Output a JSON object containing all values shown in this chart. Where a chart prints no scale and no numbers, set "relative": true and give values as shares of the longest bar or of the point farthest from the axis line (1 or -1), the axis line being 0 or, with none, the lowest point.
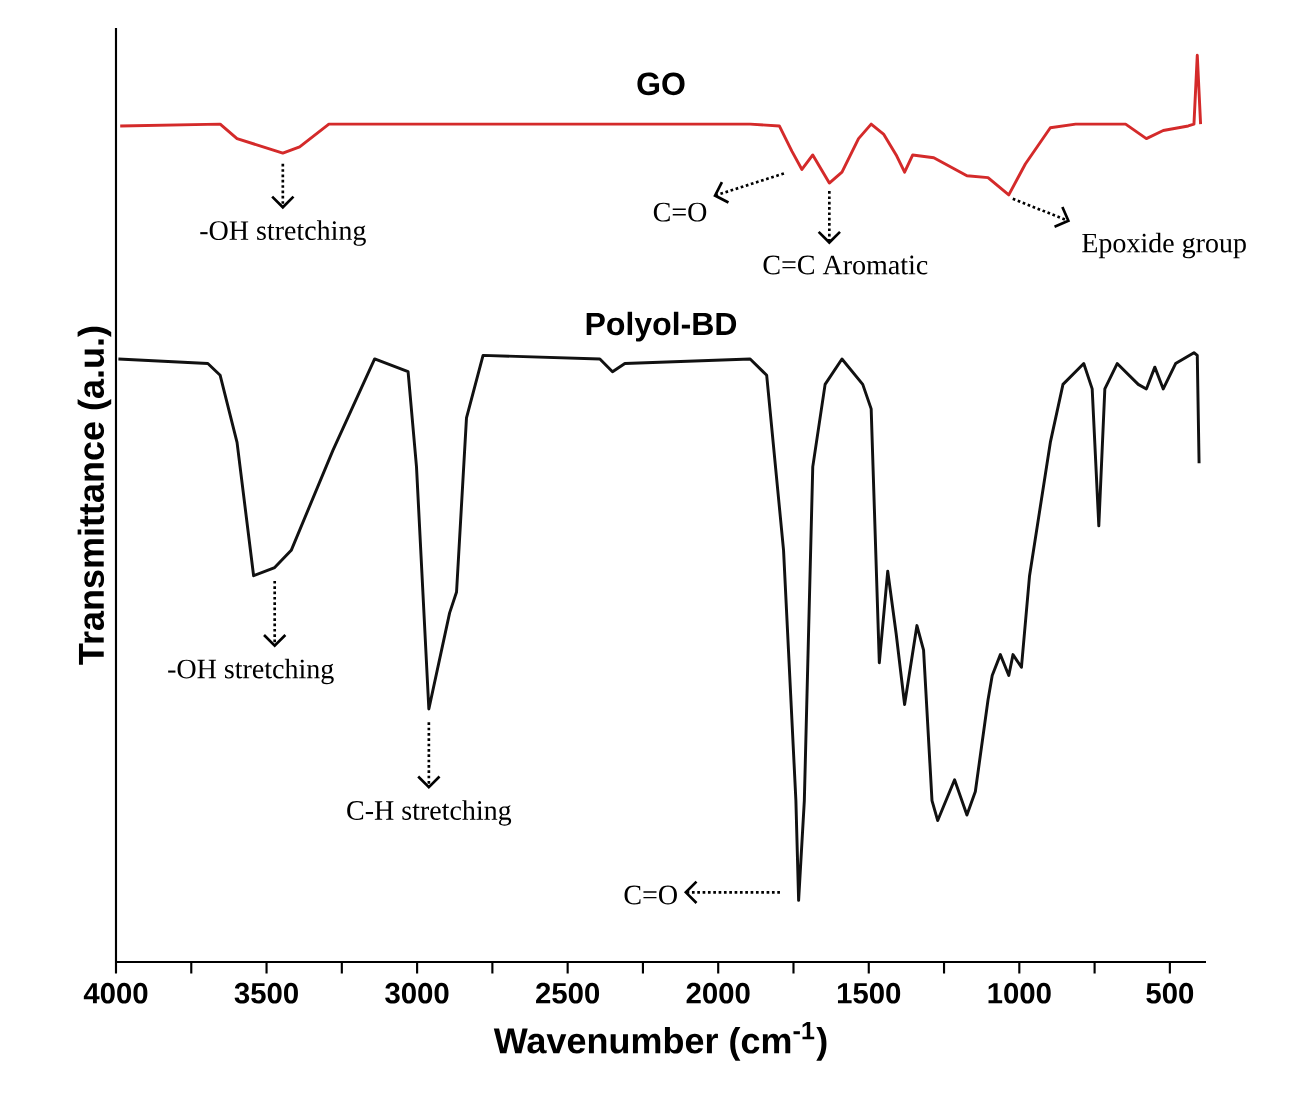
{
  "chart_data": {
    "type": "line",
    "xlabel": "Wavenumber (cm$^{-1}$)",
    "ylabel": "Transmittance (a.u.)",
    "relative": true,
    "xlim": [
      4000,
      380
    ],
    "xticks": [
      4000,
      {
        "value": 3750,
        "label": null
      },
      3500,
      {
        "value": 3250,
        "label": null
      },
      3000,
      {
        "value": 2750,
        "label": null
      },
      2500,
      {
        "value": 2250,
        "label": null
      },
      2000,
      {
        "value": 1750,
        "label": null
      },
      1500,
      {
        "value": 1250,
        "label": null
      },
      1000,
      {
        "value": 750,
        "label": null
      },
      500
    ],
    "series": [
      {
        "name": "GO",
        "color": "#d42a2a",
        "x": [
          3986,
          3654,
          3598,
          3446,
          3390,
          3293,
          1894,
          1797,
          1755,
          1722,
          1686,
          1631,
          1589,
          1534,
          1492,
          1451,
          1409,
          1381,
          1354,
          1284,
          1174,
          1104,
          1035,
          980,
          897,
          813,
          647,
          578,
          522,
          439,
          420,
          409,
          398
        ],
        "values": [
          0.922,
          0.924,
          0.908,
          0.892,
          0.899,
          0.924,
          0.924,
          0.922,
          0.894,
          0.874,
          0.89,
          0.859,
          0.871,
          0.908,
          0.924,
          0.913,
          0.89,
          0.871,
          0.89,
          0.887,
          0.867,
          0.865,
          0.846,
          0.88,
          0.92,
          0.924,
          0.924,
          0.908,
          0.917,
          0.922,
          0.924,
          1.0,
          0.924
        ]
      },
      {
        "name": "Polyol-BD",
        "color": "#111111",
        "x": [
          3992,
          3695,
          3654,
          3598,
          3543,
          3473,
          3418,
          3280,
          3141,
          3030,
          3002,
          2961,
          2892,
          2869,
          2836,
          2781,
          2393,
          2351,
          2310,
          1894,
          1839,
          1783,
          1742,
          1733,
          1714,
          1686,
          1645,
          1589,
          1520,
          1492,
          1465,
          1437,
          1409,
          1381,
          1340,
          1318,
          1290,
          1271,
          1215,
          1174,
          1146,
          1104,
          1090,
          1063,
          1035,
          1021,
          993,
          966,
          897,
          855,
          786,
          758,
          736,
          716,
          675,
          605,
          578,
          550,
          522,
          481,
          420,
          409,
          403
        ],
        "values": [
          0.665,
          0.66,
          0.647,
          0.573,
          0.426,
          0.435,
          0.454,
          0.564,
          0.665,
          0.651,
          0.546,
          0.279,
          0.385,
          0.408,
          0.6,
          0.669,
          0.665,
          0.651,
          0.66,
          0.665,
          0.647,
          0.454,
          0.178,
          0.068,
          0.178,
          0.546,
          0.637,
          0.665,
          0.637,
          0.61,
          0.33,
          0.431,
          0.362,
          0.284,
          0.371,
          0.344,
          0.178,
          0.156,
          0.201,
          0.162,
          0.188,
          0.289,
          0.316,
          0.339,
          0.316,
          0.339,
          0.325,
          0.426,
          0.573,
          0.637,
          0.66,
          0.632,
          0.481,
          0.632,
          0.66,
          0.637,
          0.632,
          0.656,
          0.632,
          0.66,
          0.672,
          0.669,
          0.55
        ]
      }
    ],
    "annotations": [
      {
        "text": "-OH stretching",
        "x": 3446,
        "y": 0.892
      },
      {
        "text": "C=O",
        "x": 1742,
        "y": 0.874
      },
      {
        "text": "C=C Aromatic",
        "x": 1631,
        "y": 0.859
      },
      {
        "text": "Epoxide group",
        "x": 1035,
        "y": 0.846
      },
      {
        "text": "-OH stretching",
        "x": 3473,
        "y": 0.435
      },
      {
        "text": "C-H stretching",
        "x": 2961,
        "y": 0.279
      },
      "C=O"
    ]
  }
}
